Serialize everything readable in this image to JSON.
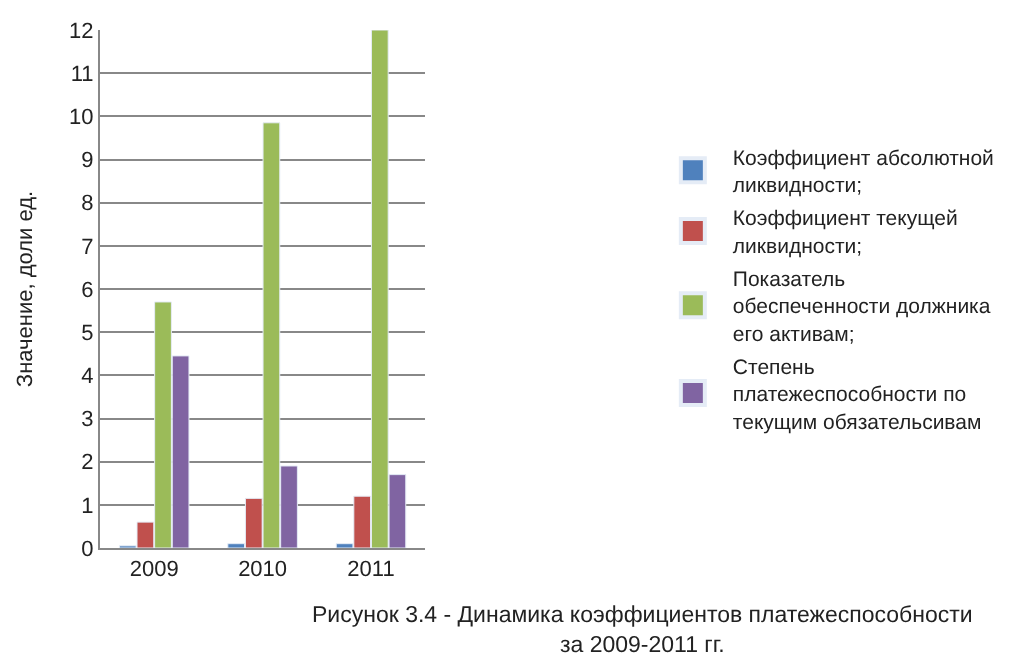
{
  "chart_data": {
    "type": "bar",
    "ylabel": "Значение, доли ед.",
    "categories": [
      "2009",
      "2010",
      "2011"
    ],
    "series": [
      {
        "name": "Коэффициент абсолютной ликвидности;",
        "color": "#4f81bd",
        "values": [
          0.05,
          0.1,
          0.1
        ]
      },
      {
        "name": "Коэффициент текущей ликвидности;",
        "color": "#c0504d",
        "values": [
          0.6,
          1.15,
          1.2
        ]
      },
      {
        "name": "Показатель обеспеченности должника его активам;",
        "color": "#9bbb59",
        "values": [
          5.7,
          9.85,
          12.0
        ]
      },
      {
        "name": "Степень платежеспособности по текущим обязательсивам",
        "color": "#8064a2",
        "values": [
          4.45,
          1.9,
          1.7
        ]
      }
    ],
    "ylim": [
      0,
      12
    ],
    "yticks": [
      0,
      1,
      2,
      3,
      4,
      5,
      6,
      7,
      8,
      9,
      10,
      11,
      12
    ],
    "grid": "y",
    "legend": "right",
    "annotations": [
      "Рисунок 3.4 - Динамика коэффициентов платежеспособности за 2009-2011 гг."
    ]
  }
}
